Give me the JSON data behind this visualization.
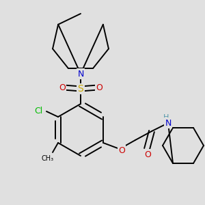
{
  "background_color": "#e0e0e0",
  "colors": {
    "C": "#000000",
    "N": "#0000cc",
    "O": "#cc0000",
    "S": "#ccaa00",
    "Cl": "#00bb00",
    "H": "#5599aa",
    "bond": "#000000"
  },
  "figsize": [
    3.0,
    3.0
  ],
  "dpi": 100
}
